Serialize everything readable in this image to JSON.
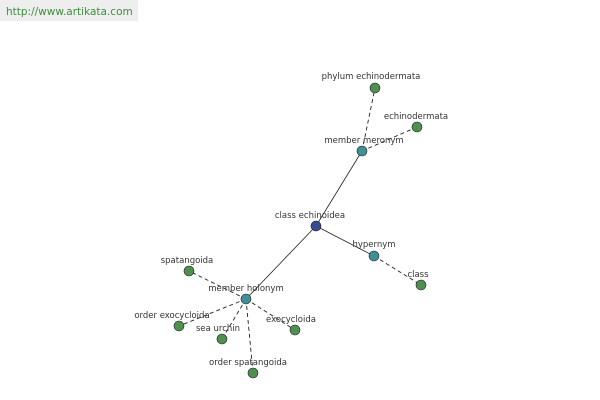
{
  "header": {
    "url": "http://www.artikata.com"
  },
  "nodes": [
    {
      "label": "class echinoidea"
    },
    {
      "label": "member meronym"
    },
    {
      "label": "phylum echinodermata"
    },
    {
      "label": "echinodermata"
    },
    {
      "label": "hypernym"
    },
    {
      "label": "class"
    },
    {
      "label": "member holonym"
    },
    {
      "label": "spatangoida"
    },
    {
      "label": "order exocycloida"
    },
    {
      "label": "sea urchin"
    },
    {
      "label": "exocycloida"
    },
    {
      "label": "order spatangoida"
    }
  ]
}
